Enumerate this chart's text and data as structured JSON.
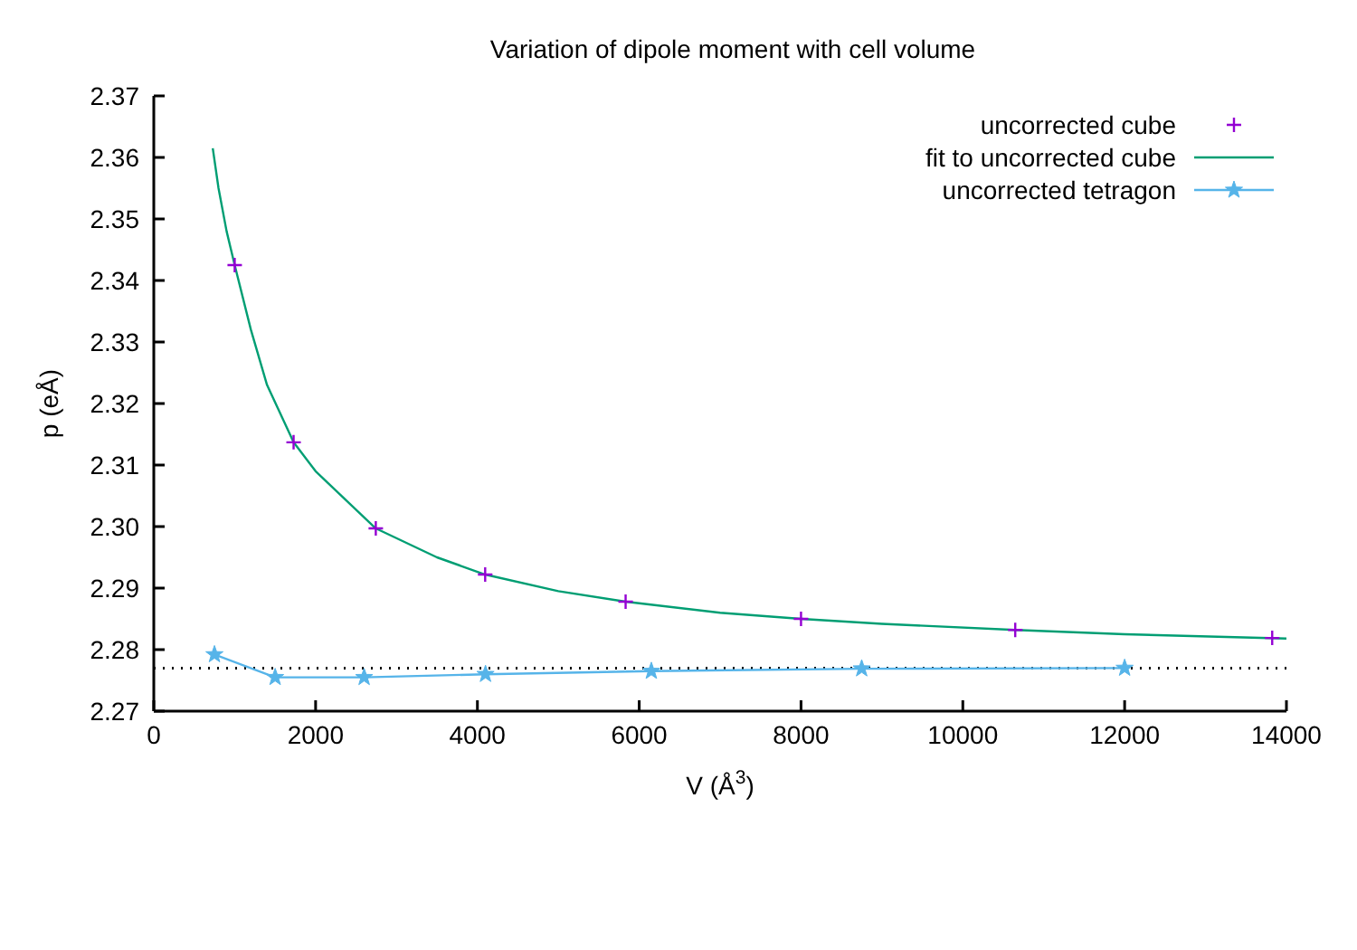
{
  "chart_data": {
    "type": "scatter",
    "title": "Variation of dipole moment with cell volume",
    "xlabel": "V (Å$^{3}$)",
    "ylabel": "p (eÅ)",
    "xlim": [
      0,
      14000
    ],
    "xticks": [
      0,
      2000,
      4000,
      6000,
      8000,
      10000,
      12000,
      14000
    ],
    "ylim": [
      2.27,
      2.37
    ],
    "yticks": [
      2.27,
      2.28,
      2.29,
      {
        "value": 2.3,
        "label": "2.30"
      },
      2.31,
      2.32,
      2.33,
      2.34,
      2.35,
      2.36,
      2.37
    ],
    "grid": false,
    "legend": "top right",
    "series": [
      {
        "name": "uncorrected cube",
        "type": "scatter",
        "marker": "cross",
        "color": "#9400d3",
        "x": [
          1000,
          1728,
          2744,
          4096,
          5832,
          8000,
          10648,
          13824
        ],
        "values": [
          2.3425,
          2.3137,
          2.2997,
          2.2922,
          2.2878,
          2.285,
          2.2832,
          2.2819
        ]
      },
      {
        "name": "fit to uncorrected cube",
        "type": "line",
        "marker": "none",
        "color": "#009e73",
        "x": [
          729,
          800,
          900,
          1000,
          1200,
          1400,
          1728,
          2000,
          2744,
          3500,
          4096,
          5000,
          5832,
          7000,
          8000,
          9000,
          10648,
          12000,
          14000
        ],
        "values": [
          2.3615,
          2.355,
          2.348,
          2.3425,
          2.332,
          2.323,
          2.3137,
          2.309,
          2.2997,
          2.295,
          2.2922,
          2.2895,
          2.2878,
          2.286,
          2.285,
          2.2842,
          2.2832,
          2.2825,
          2.2818
        ]
      },
      {
        "name": "uncorrected tetragon",
        "type": "line",
        "marker": "star",
        "color": "#56b4e9",
        "x": [
          750,
          1500,
          2600,
          4100,
          6150,
          8750,
          12000
        ],
        "values": [
          2.2792,
          2.2755,
          2.2755,
          2.276,
          2.2765,
          2.2769,
          2.277
        ]
      }
    ],
    "ref_lines": [
      {
        "axis": "y",
        "value": 2.277,
        "color": "#000000",
        "line_style": "dotted"
      }
    ]
  }
}
